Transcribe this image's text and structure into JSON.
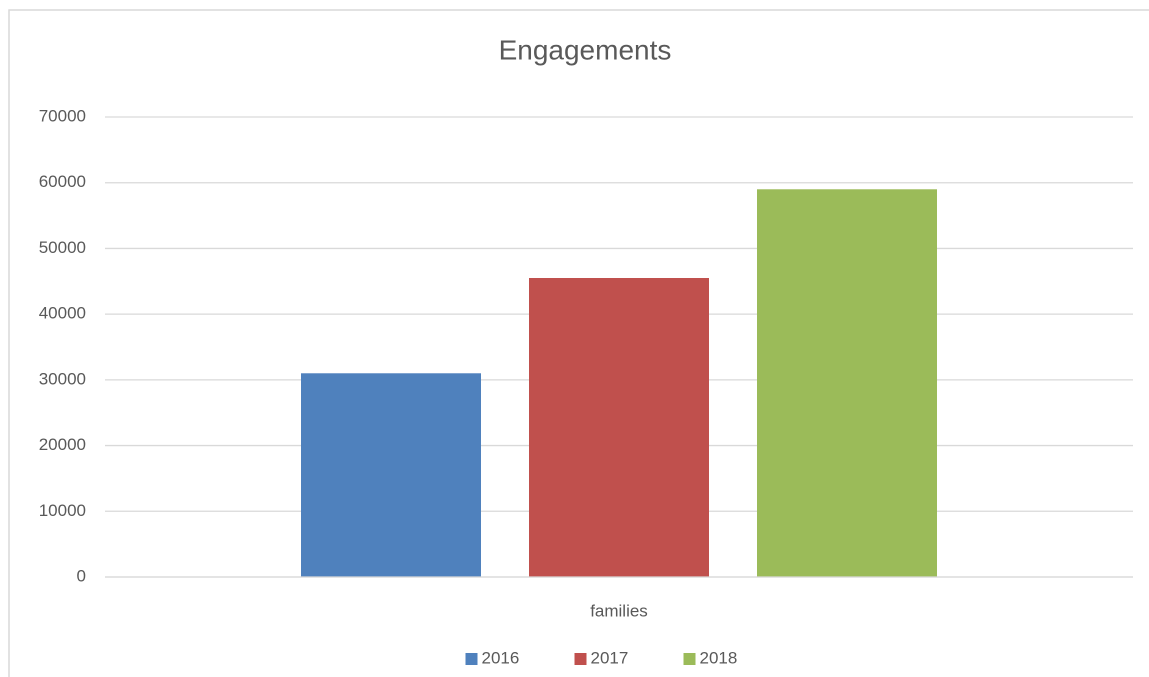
{
  "chart_data": {
    "type": "bar",
    "title": "Engagements",
    "categories": [
      "families"
    ],
    "series": [
      {
        "name": "2016",
        "color": "#4f81bd",
        "values": [
          31000
        ]
      },
      {
        "name": "2017",
        "color": "#c0504d",
        "values": [
          45500
        ]
      },
      {
        "name": "2018",
        "color": "#9bbb59",
        "values": [
          59000
        ]
      }
    ],
    "ylim": [
      0,
      70000
    ],
    "yticks": [
      0,
      10000,
      20000,
      30000,
      40000,
      50000,
      60000,
      70000
    ],
    "grid": true,
    "legend": "bottom"
  }
}
